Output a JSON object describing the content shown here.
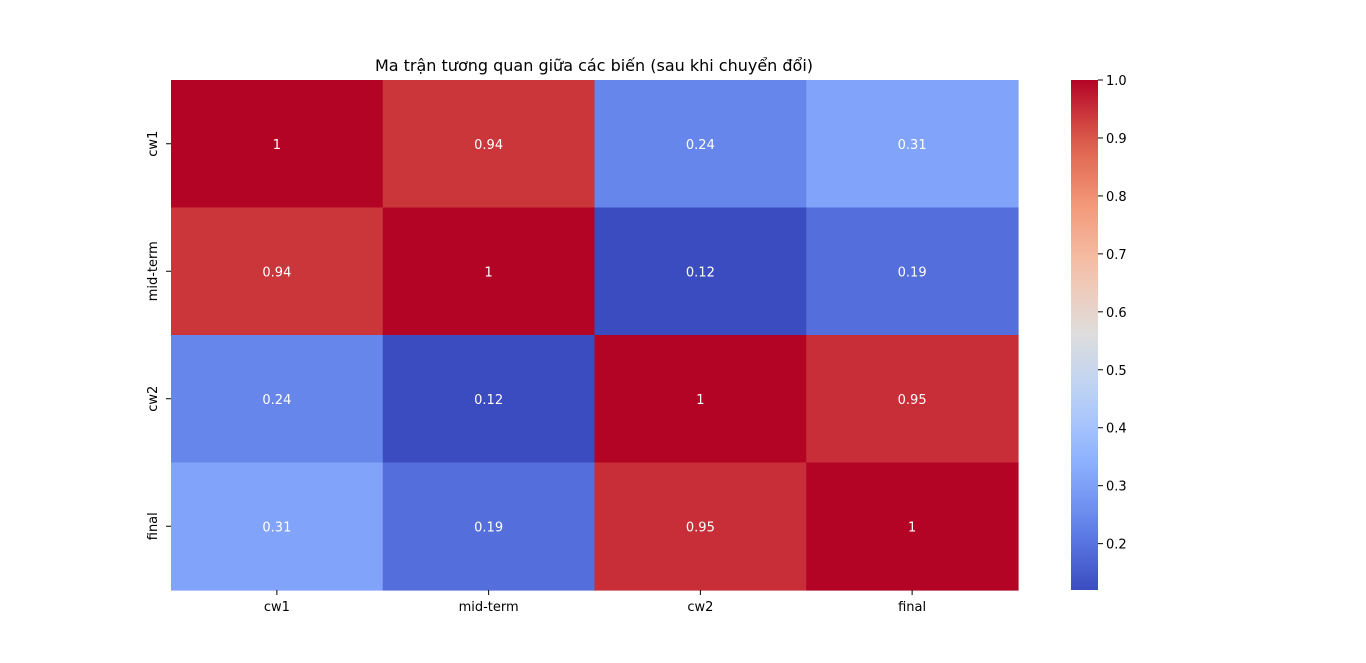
{
  "chart_data": {
    "type": "heatmap",
    "title": "Ma trận tương quan giữa các biến (sau khi chuyển đổi)",
    "row_labels": [
      "cw1",
      "mid-term",
      "cw2",
      "final"
    ],
    "col_labels": [
      "cw1",
      "mid-term",
      "cw2",
      "final"
    ],
    "values": [
      [
        1,
        0.94,
        0.24,
        0.31
      ],
      [
        0.94,
        1,
        0.12,
        0.19
      ],
      [
        0.24,
        0.12,
        1,
        0.95
      ],
      [
        0.31,
        0.19,
        0.95,
        1
      ]
    ],
    "annotations": [
      [
        "1",
        "0.94",
        "0.24",
        "0.31"
      ],
      [
        "0.94",
        "1",
        "0.12",
        "0.19"
      ],
      [
        "0.24",
        "0.12",
        "1",
        "0.95"
      ],
      [
        "0.31",
        "0.19",
        "0.95",
        "1"
      ]
    ],
    "colormap": "coolwarm",
    "colorbar": {
      "range": [
        0.12,
        1.0
      ],
      "ticks": [
        0.2,
        0.3,
        0.4,
        0.5,
        0.6,
        0.7,
        0.8,
        0.9,
        1.0
      ],
      "tick_labels": [
        "0.2",
        "0.3",
        "0.4",
        "0.5",
        "0.6",
        "0.7",
        "0.8",
        "0.9",
        "1.0"
      ]
    }
  }
}
